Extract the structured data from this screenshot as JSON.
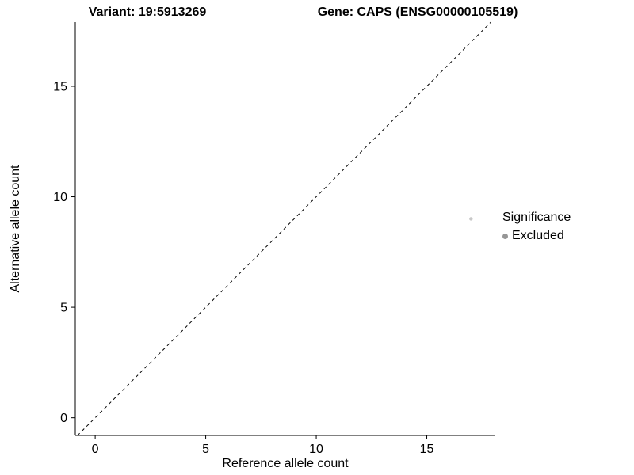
{
  "chart_data": {
    "type": "scatter",
    "titles": {
      "left": "Variant: 19:5913269",
      "right": "Gene: CAPS (ENSG00000105519)"
    },
    "xlabel": "Reference allele count",
    "ylabel": "Alternative allele count",
    "xlim": [
      -0.9,
      18.1
    ],
    "ylim": [
      -0.8,
      17.9
    ],
    "xticks": [
      0,
      5,
      10,
      15
    ],
    "yticks": [
      0,
      5,
      10,
      15
    ],
    "grid": false,
    "axis_color": "#000000",
    "identity_line": {
      "x1": -0.8,
      "y1": -0.8,
      "x2": 17.9,
      "y2": 17.9,
      "style": "dashed",
      "color": "#000000"
    },
    "points": [
      {
        "x": 17,
        "y": 9,
        "series": "Excluded"
      }
    ],
    "point_color": "#c8c8c8",
    "legend": {
      "position": "right",
      "title": "Significance",
      "entries": [
        {
          "label": "Excluded",
          "color": "#969696"
        }
      ]
    }
  }
}
